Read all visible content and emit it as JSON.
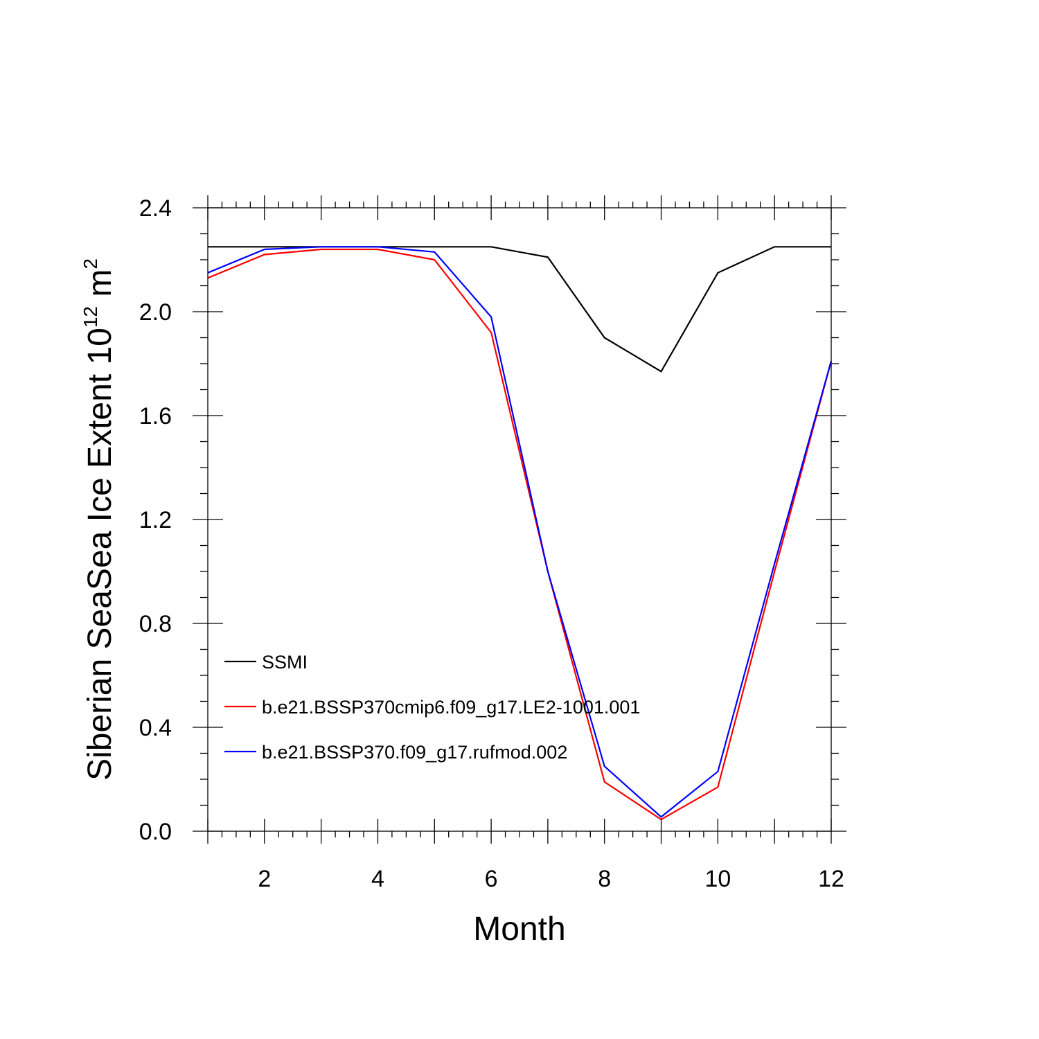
{
  "chart_data": {
    "type": "line",
    "title": "",
    "xlabel": "Month",
    "ylabel": {
      "main": "Siberian SeaSea Ice Extent 10",
      "exponent": "12",
      "unit": " m",
      "unit_exponent": "2"
    },
    "xlim": [
      1,
      12
    ],
    "ylim": [
      0.0,
      2.4
    ],
    "x": [
      1,
      2,
      3,
      4,
      5,
      6,
      7,
      8,
      9,
      10,
      11,
      12
    ],
    "x_ticks": [
      2,
      4,
      6,
      8,
      10,
      12
    ],
    "x_tick_labels": [
      "2",
      "4",
      "6",
      "8",
      "10",
      "12"
    ],
    "y_ticks": [
      0.0,
      0.4,
      0.8,
      1.2,
      1.6,
      2.0,
      2.4
    ],
    "y_tick_labels": [
      "0.0",
      "0.4",
      "0.8",
      "1.2",
      "1.6",
      "2.0",
      "2.4"
    ],
    "grid": false,
    "legend_position": "lower-left",
    "series": [
      {
        "name": "SSMI",
        "color": "#000000",
        "values": [
          2.25,
          2.25,
          2.25,
          2.25,
          2.25,
          2.25,
          2.21,
          1.9,
          1.77,
          2.15,
          2.25,
          2.25
        ]
      },
      {
        "name": "b.e21.BSSP370cmip6.f09_g17.LE2-1001.001",
        "color": "#ff0000",
        "values": [
          2.13,
          2.22,
          2.24,
          2.24,
          2.2,
          1.92,
          1.0,
          0.19,
          0.045,
          0.17,
          1.0,
          1.81
        ]
      },
      {
        "name": "b.e21.BSSP370.f09_g17.rufmod.002",
        "color": "#0000ff",
        "values": [
          2.15,
          2.24,
          2.25,
          2.25,
          2.23,
          1.98,
          1.0,
          0.25,
          0.055,
          0.23,
          1.03,
          1.81
        ]
      }
    ]
  }
}
